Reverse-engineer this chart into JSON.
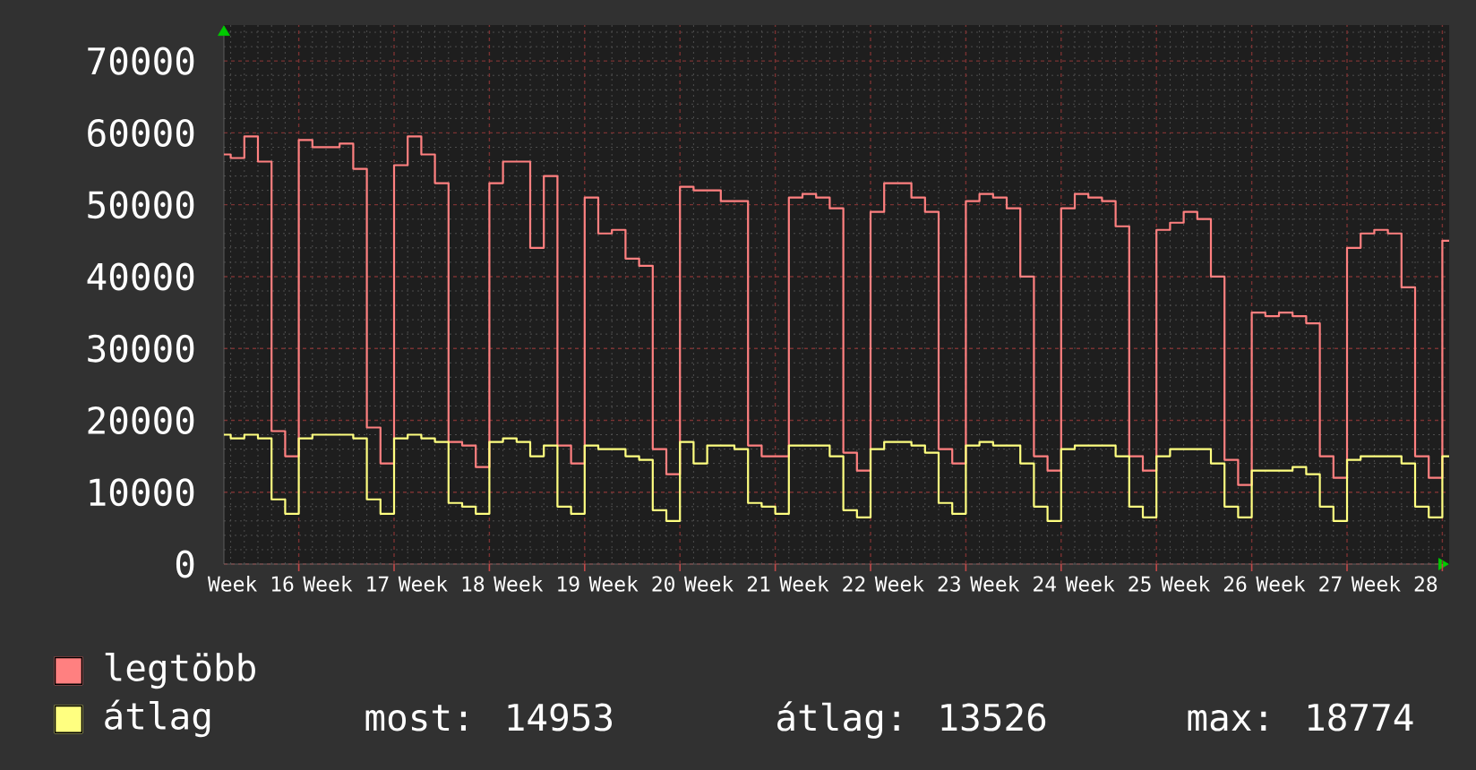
{
  "chart_data": {
    "type": "step",
    "categories": [
      null,
      null,
      "Week 16",
      null,
      null,
      null,
      null,
      null,
      null,
      "Week 17",
      null,
      null,
      null,
      null,
      null,
      null,
      "Week 18",
      null,
      null,
      null,
      null,
      null,
      null,
      "Week 19",
      null,
      null,
      null,
      null,
      null,
      null,
      "Week 20",
      null,
      null,
      null,
      null,
      null,
      null,
      "Week 21",
      null,
      null,
      null,
      null,
      null,
      null,
      "Week 22",
      null,
      null,
      null,
      null,
      null,
      null,
      "Week 23",
      null,
      null,
      null,
      null,
      null,
      null,
      "Week 24",
      null,
      null,
      null,
      null,
      null,
      null,
      "Week 25",
      null,
      null,
      null,
      null,
      null,
      null,
      "Week 26",
      null,
      null,
      null,
      null,
      null,
      null,
      "Week 27",
      null,
      null,
      null,
      null,
      null,
      null,
      "Week 28",
      null,
      null,
      null,
      null
    ],
    "series": [
      {
        "name": "legtöbb",
        "color": "#ff8080",
        "values": [
          57000,
          56500,
          59500,
          56000,
          18500,
          15000,
          59000,
          58000,
          58000,
          58500,
          55000,
          19000,
          14000,
          55500,
          59500,
          57000,
          53000,
          17000,
          16500,
          13500,
          53000,
          56000,
          56000,
          44000,
          54000,
          16500,
          14000,
          51000,
          46000,
          46500,
          42500,
          41500,
          16000,
          12500,
          52500,
          52000,
          52000,
          50500,
          50500,
          16500,
          15000,
          15000,
          51000,
          51500,
          51000,
          49500,
          15500,
          13000,
          49000,
          53000,
          53000,
          51000,
          49000,
          16000,
          14000,
          50500,
          51500,
          51000,
          49500,
          40000,
          15000,
          13000,
          49500,
          51500,
          51000,
          50500,
          47000,
          15000,
          13000,
          46500,
          47500,
          49000,
          48000,
          40000,
          14500,
          11000,
          35000,
          34500,
          35000,
          34500,
          33500,
          15000,
          12000,
          44000,
          46000,
          46500,
          46000,
          38500,
          15000,
          12000,
          45000
        ]
      },
      {
        "name": "átlag",
        "color": "#ffff80",
        "values": [
          18000,
          17500,
          18000,
          17500,
          9000,
          7000,
          17500,
          18000,
          18000,
          18000,
          17500,
          9000,
          7000,
          17500,
          18000,
          17500,
          17000,
          8500,
          8000,
          7000,
          17000,
          17500,
          17000,
          15000,
          16500,
          8000,
          7000,
          16500,
          16000,
          16000,
          15000,
          14500,
          7500,
          6000,
          17000,
          14000,
          16500,
          16500,
          16000,
          8500,
          8000,
          7000,
          16500,
          16500,
          16500,
          15000,
          7500,
          6500,
          16000,
          17000,
          17000,
          16500,
          15500,
          8500,
          7000,
          16500,
          17000,
          16500,
          16500,
          14000,
          8000,
          6000,
          16000,
          16500,
          16500,
          16500,
          15000,
          8000,
          6500,
          15000,
          16000,
          16000,
          16000,
          14000,
          8000,
          6500,
          13000,
          13000,
          13000,
          13500,
          12500,
          8000,
          6000,
          14500,
          15000,
          15000,
          15000,
          14000,
          8000,
          6500,
          15000
        ]
      }
    ],
    "ylim": [
      0,
      75000
    ],
    "yticks": [
      0,
      10000,
      20000,
      30000,
      40000,
      50000,
      60000,
      70000
    ],
    "grid": true,
    "legend": "bottom left",
    "annotations": [
      "most: 14953",
      "átlag: 13526",
      "max: 18774"
    ]
  }
}
